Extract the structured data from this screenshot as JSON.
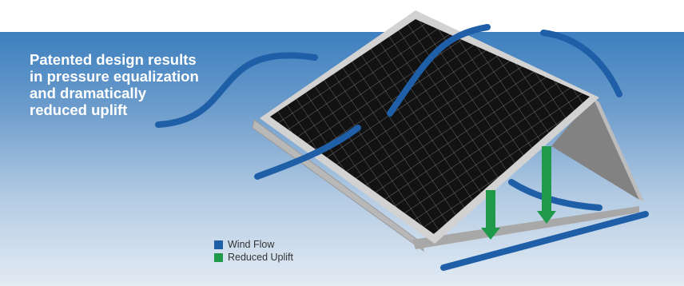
{
  "headline": {
    "lines": [
      "Patented design results",
      "in pressure equalization",
      "and dramatically",
      "reduced uplift"
    ]
  },
  "legend": {
    "items": [
      {
        "label": "Wind Flow",
        "color": "#1f5fa8"
      },
      {
        "label": "Reduced Uplift",
        "color": "#1e9a4a"
      }
    ]
  },
  "colors": {
    "wind_arrow": "#1f5fa8",
    "uplift_arrow": "#1e9a4a",
    "panel_cells": "#121212",
    "panel_frame": "#d2d2d2",
    "mount_support": "#828282",
    "background_top": "#3d7fbf",
    "background_bottom": "#e3ebf4"
  }
}
